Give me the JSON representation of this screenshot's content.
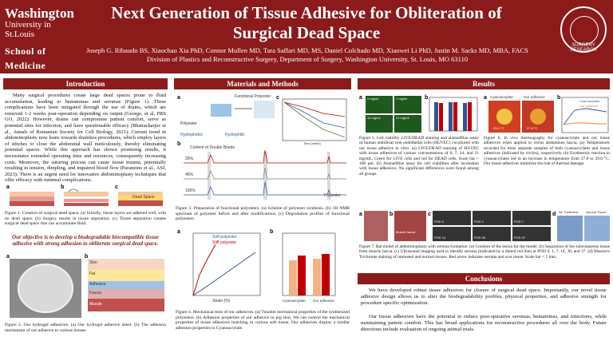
{
  "header": {
    "logo_line1": "Washington",
    "logo_line2": "University in St.Louis",
    "logo_line3": "School of Medicine",
    "title_line1": "Next Generation of Tissue Adhesive for Obliteration of",
    "title_line2": "Surgical Dead Space",
    "authors": "Joseph G. Ribaudo BS, Xiaochao Xia PhD, Connor Mullen MD, Tara Saffari MD, MS, Daniel Colchado MD, Xiaowei Li PhD, Justin M. Sacks MD, MBA, FACS",
    "affiliation": "Division of Plastics and Reconstructive Surgery, Department of Surgery, Washington University, St. Louis, MO 63110",
    "seal_text": "SURGERY RESEARCH"
  },
  "sections": {
    "introduction": "Introduction",
    "methods": "Materials and Methods",
    "results": "Results",
    "conclusions": "Conclusions"
  },
  "intro": {
    "body": "Many surgical procedures create large dead spaces prone to fluid accumulation, leading to hematomas and seromas (Figure 1). These complications have been mitigated through the use of drains, which are removed 1-2 weeks post-operation depending on output (George, et al, PRS GO, 2022). However, drains can compromise patient comfort, serve as potential sites for infection, and have questionable efficacy (Bhattacharjee et al., Annals of Romanian Society for Cell Biology, 2021). Current trend in abdominoplasty now leans towards drainless procedures, which employ layers of stitches to close the abdominal wall meticulously, thereby eliminating potential spaces. While this approach has shown promising results, it necessitates extended operating time and resources, consequently increasing costs. Moreover, the suturing process can cause tissue trauma, potentially resulting in tension, dimpling, and impaired blood flow (Paranzino et al., ASJ, 2023). There is an urgent need for innovative abdominoplasty techniques that offer efficacy with minimal complications.",
    "fig1_caption": "Figure 1. Creation of surgical dead space. (a) Initially, tissue layers are adhered well, with no dead space. (b) Surgery results in tissue separation. (c) Tissue separation creates surgical dead space that can accumulate fluid.",
    "fig1_label_c": "Dead Space",
    "objective": "Our objective is to develop a biodegradable biocompatible tissue adhesive with strong adhesion to obliterate surgical dead space.",
    "fig2_caption": "Figure 2. Our hydrogel adhesives. (a) Our hydrogel adhesive sheet. (b) The adhesion mechanism of our adhesive to various tissues.",
    "fig2_layers": [
      "Skin",
      "Fat",
      "Adhesive",
      "Fascia",
      "Muscle"
    ]
  },
  "methods": {
    "fig3a_title": "Functional Polyester",
    "fig3a_left": "Polyester",
    "fig3a_hydrophobic": "Hydrophobic",
    "fig3a_hydrophilic": "Hydrophilic",
    "fig3c_ylabel": "Residual mass (%)",
    "fig3c_xlabel": "Time (week)",
    "fig3b_title": "Content of Double Bonds",
    "fig3b_levels": [
      "25%",
      "45%",
      "100%"
    ],
    "fig3b_right": "Polyester",
    "fig3_caption": "Figure 3. Preparation of functional polyesters. (a) Scheme of polyester synthesis. (b) 1H NMR spectrum of polyester before and after modifications. (c) Degradation profiles of functional polyesters.",
    "fig4a_legend": [
      "Soft polyester",
      "Stiff polyester"
    ],
    "fig4a_ylabel": "Stress (MPa)",
    "fig4a_xlabel": "Strain (%)",
    "fig4b_ylabel_left": "Shear strength (kPa)",
    "fig4b_ylabel_right": "Interfacial toughness (J/m2)",
    "fig4b_categories": [
      "Cyanoacrylate",
      "Our adhesive"
    ],
    "fig4_caption": "Figure 4. Mechanical tests of our adhesives. (a) Tunable mechanical properties of the synthesized polyesters. (b) Adhesion properties of our adhesive to pig skin. We can control the mechanical properties of tissue adhesives matching to various soft tissue. Our adhesives display a similar adhesion properties to Cyanoacrylate."
  },
  "results": {
    "fig5_caption": "Figure 5. Cell viability LIVE/DEAD staining and alamarBlue assay of human umbilical vein endothelial cells (HUVEC) cocultured with our tissue adhesive in vitro. (a) LIVE/DEAD staining of HUVEC with tissue adhesives of various concentrations of 0, 7, 14, and 21 mg/mL. Green for LIVE cells and red for DEAD cells. Scale bar = 100 µm. (b) AlamarBlue assay for cell viabilities after incubation with tissue adhesives. No significant differences were found among all groups.",
    "fig5_conc": [
      "0 mg/ml",
      "7 mg/ml",
      "14 mg/ml",
      "21 mg/ml"
    ],
    "fig5b_ylabel": "Cell viability (%)",
    "fig5b_xlabel": "Time (day)",
    "fig6_caption": "Figure 6. In vivo thermography for cyanoacrylate and our tissue adhesives when applied to rectus abdominus fascia. (a) Temperatures recorded for three separate samples of both cyanoacrylates and tissue adhesives (indicated by circles), respectively. (b) Exothermic reaction in cyanoacrylates led to an increase in temperature from 27.8 to 29.0 °C. Our tissue adhesives minimize the risk of thermal damage.",
    "fig6_labels": [
      "Cyanoacrylate",
      "Our adhesive"
    ],
    "fig6_temps": [
      "29.0 °C",
      "27.8 °C"
    ],
    "fig6b_legend": [
      "Cyanoacrylate",
      "Our adhesive"
    ],
    "fig7_caption": "Figure 7. Rat model of abdominoplasty with seroma formation. (a) Creation of the lesion for the model. (b) Separation of the subcutaneous tissue from muscle fascia. (c) Ultrasound imaging used to identify seroma (indicated by a dotted red line) at POD 0, 1, 7, 14, 30, and 37. (d) Masson's Trichrome staining of untreated and normal tissues. Red arrow indicates seroma and scar tissue. Scale bar = 1 mm.",
    "fig7_pods": [
      "POD 0",
      "POD 1",
      "POD 7",
      "POD 14",
      "POD 30",
      "POD 37"
    ],
    "fig7_d_labels": [
      "No Treatment",
      "Normal Tissue"
    ],
    "fig7_b_label": "Muscle fascia"
  },
  "conclusions": {
    "p1": "We have developed robust tissue adhesives for closure of surgical dead space. Importantly, our novel tissue adhesive design allows us to alter the biodegradability profiles, physical properties, and adhesive strength for procedure specific optimization.",
    "p2": "Our tissue adhesives have the potential to reduce post-operative seromas, hematomas, and infections, while maintaining patient comfort. This has broad applications for reconstructive procedures all over the body. Future directions include evaluation of ongoing animal trials."
  },
  "colors": {
    "brand": "#8b1a1a",
    "live": "#3cb043",
    "panel_dark": "#222222"
  }
}
